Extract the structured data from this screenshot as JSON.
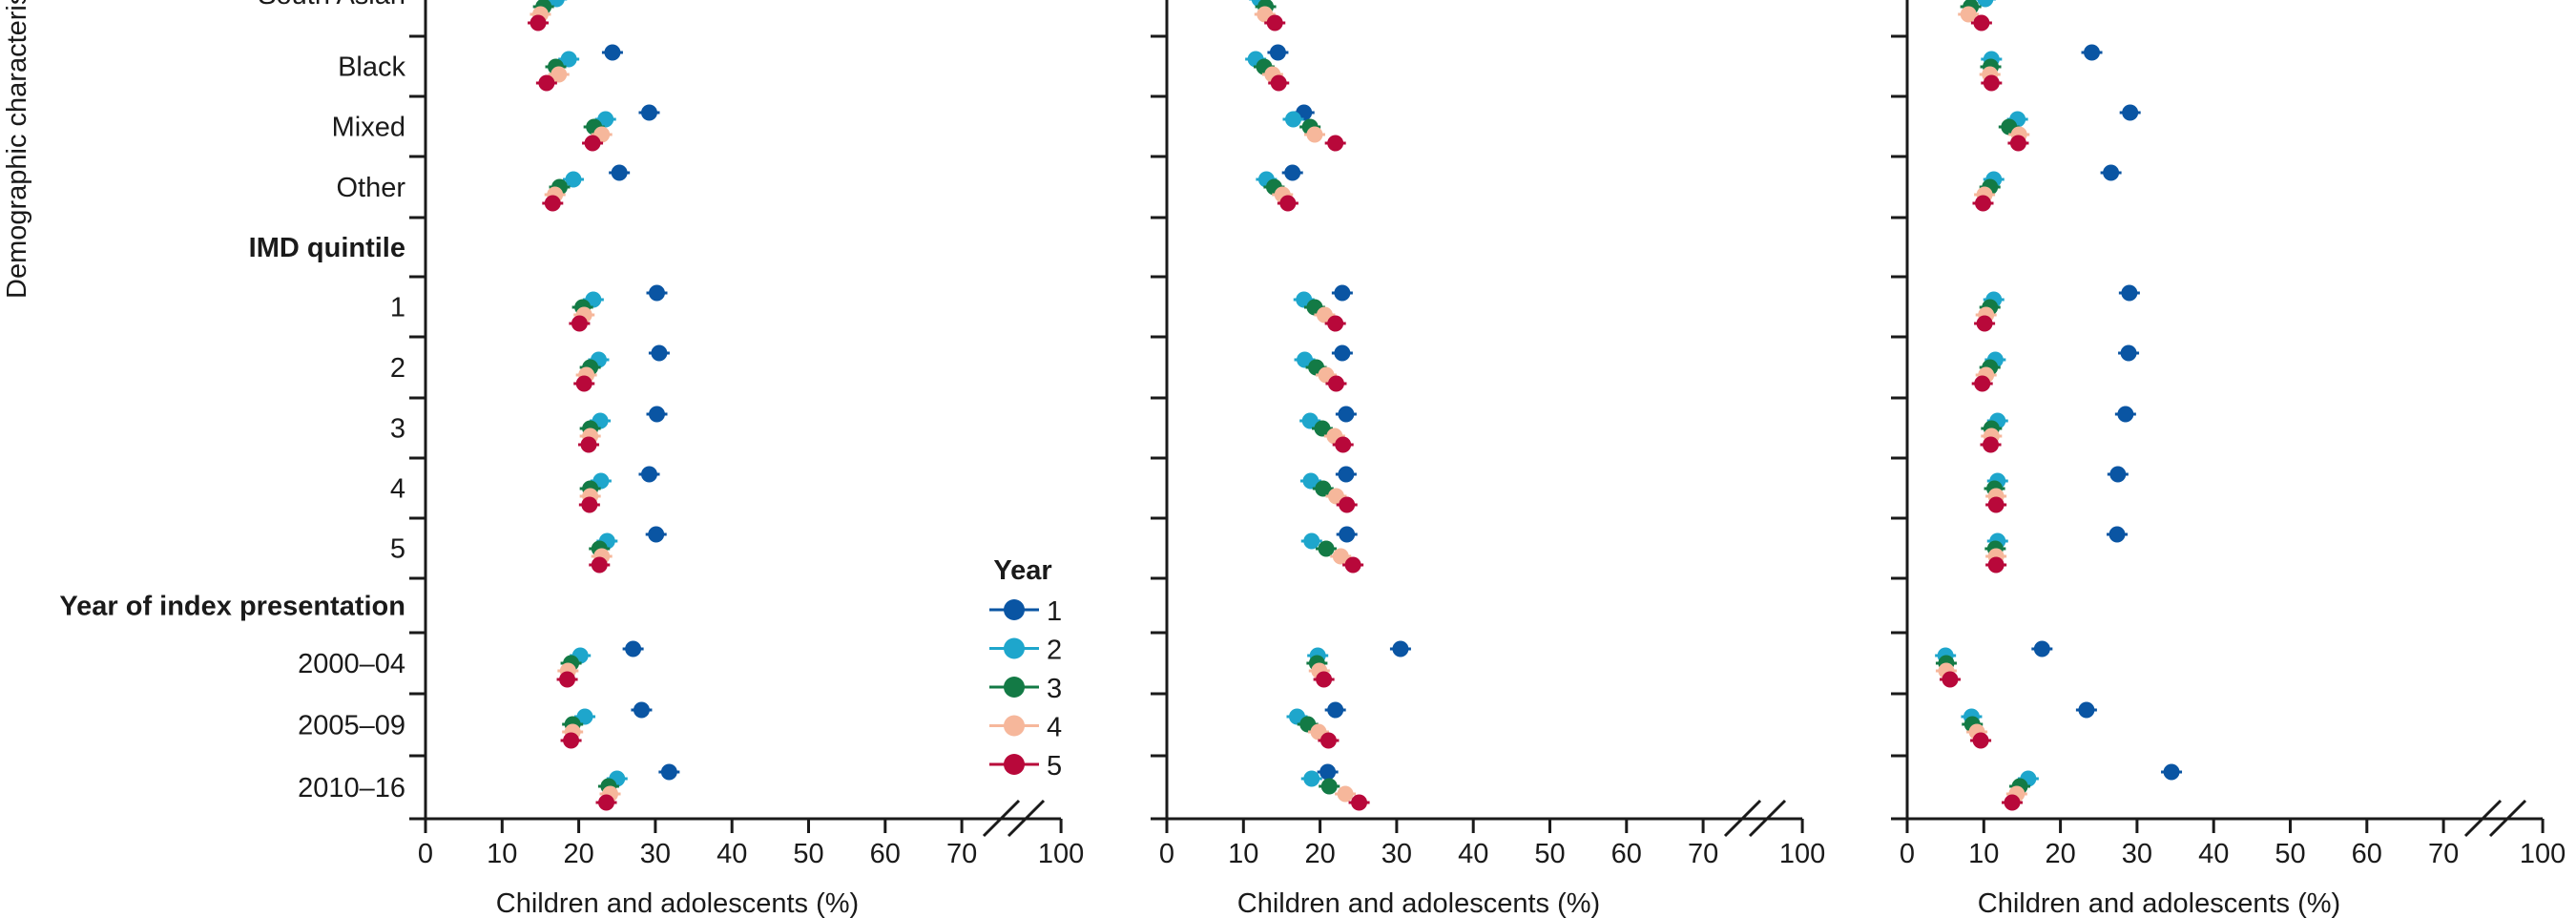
{
  "y_axis": {
    "title": "Demographic characteristics",
    "rows": [
      {
        "label": "South Asian",
        "kind": "category"
      },
      {
        "label": "Black",
        "kind": "category"
      },
      {
        "label": "Mixed",
        "kind": "category"
      },
      {
        "label": "Other",
        "kind": "category"
      },
      {
        "label": "IMD quintile",
        "kind": "header"
      },
      {
        "label": "1",
        "kind": "category"
      },
      {
        "label": "2",
        "kind": "category"
      },
      {
        "label": "3",
        "kind": "category"
      },
      {
        "label": "4",
        "kind": "category"
      },
      {
        "label": "5",
        "kind": "category"
      },
      {
        "label": "Year of index presentation",
        "kind": "header"
      },
      {
        "label": "2000–04",
        "kind": "category"
      },
      {
        "label": "2005–09",
        "kind": "category"
      },
      {
        "label": "2010–16",
        "kind": "category"
      }
    ]
  },
  "legend": {
    "title": "Year",
    "placement": "bottom-right of first panel",
    "items": [
      {
        "label": "1",
        "color": "#0a55a3"
      },
      {
        "label": "2",
        "color": "#1ea6cc"
      },
      {
        "label": "3",
        "color": "#137a45"
      },
      {
        "label": "4",
        "color": "#f6b79b"
      },
      {
        "label": "5",
        "color": "#b8083a"
      }
    ]
  },
  "chart_data": [
    {
      "type": "scatter",
      "xlabel": "Children and adolescents (%)",
      "xlim": [
        0,
        100
      ],
      "axis_break": [
        70,
        100
      ],
      "xticks": [
        "0",
        "10",
        "20",
        "30",
        "40",
        "50",
        "60",
        "70",
        "100"
      ],
      "grid": false,
      "series": [
        {
          "name": "1",
          "values": [
            null,
            24.4,
            29.2,
            25.3,
            null,
            30.2,
            30.5,
            30.2,
            29.2,
            30.1,
            null,
            27.1,
            28.2,
            31.8
          ]
        },
        {
          "name": "2",
          "values": [
            17.1,
            18.7,
            23.5,
            19.3,
            null,
            21.9,
            22.6,
            22.8,
            22.9,
            23.7,
            null,
            20.2,
            20.8,
            25.0
          ]
        },
        {
          "name": "3",
          "values": [
            15.4,
            17.0,
            22.0,
            17.5,
            null,
            20.5,
            21.5,
            21.5,
            21.5,
            22.7,
            null,
            19.0,
            19.2,
            23.9
          ]
        },
        {
          "name": "4",
          "values": [
            15.0,
            17.4,
            23.0,
            16.9,
            null,
            20.7,
            21.0,
            21.5,
            21.5,
            23.0,
            null,
            18.6,
            19.2,
            24.1
          ]
        },
        {
          "name": "5",
          "values": [
            14.7,
            15.8,
            21.8,
            16.6,
            null,
            20.1,
            20.7,
            21.3,
            21.4,
            22.7,
            null,
            18.5,
            19.0,
            23.6
          ]
        }
      ]
    },
    {
      "type": "scatter",
      "xlabel": "Children and adolescents (%)",
      "xlim": [
        0,
        100
      ],
      "axis_break": [
        70,
        100
      ],
      "xticks": [
        "0",
        "10",
        "20",
        "30",
        "40",
        "50",
        "60",
        "70",
        "100"
      ],
      "grid": false,
      "series": [
        {
          "name": "1",
          "values": [
            null,
            14.5,
            17.9,
            16.4,
            null,
            22.9,
            22.9,
            23.4,
            23.4,
            23.5,
            null,
            30.5,
            22.0,
            21.0
          ]
        },
        {
          "name": "2",
          "values": [
            12.1,
            11.6,
            16.5,
            13.0,
            null,
            17.9,
            18.0,
            18.7,
            18.8,
            18.9,
            null,
            19.7,
            17.0,
            18.9
          ]
        },
        {
          "name": "3",
          "values": [
            12.9,
            12.7,
            18.7,
            14.0,
            null,
            19.3,
            19.5,
            20.3,
            20.4,
            20.8,
            null,
            19.6,
            18.4,
            21.2
          ]
        },
        {
          "name": "4",
          "values": [
            12.8,
            13.8,
            19.3,
            15.1,
            null,
            20.6,
            20.8,
            21.9,
            22.1,
            22.7,
            null,
            19.9,
            19.8,
            23.3
          ]
        },
        {
          "name": "5",
          "values": [
            14.1,
            14.6,
            22.0,
            15.8,
            null,
            22.0,
            22.1,
            23.0,
            23.5,
            24.3,
            null,
            20.5,
            21.1,
            25.1
          ]
        }
      ]
    },
    {
      "type": "scatter",
      "xlabel": "Children and adolescents (%)",
      "xlim": [
        0,
        100
      ],
      "axis_break": [
        70,
        100
      ],
      "xticks": [
        "0",
        "10",
        "20",
        "30",
        "40",
        "50",
        "60",
        "70",
        "100"
      ],
      "grid": false,
      "series": [
        {
          "name": "1",
          "values": [
            null,
            24.1,
            29.1,
            26.6,
            null,
            29.0,
            28.9,
            28.5,
            27.5,
            27.4,
            null,
            17.6,
            23.4,
            34.5
          ]
        },
        {
          "name": "2",
          "values": [
            10.2,
            11.0,
            14.4,
            11.3,
            null,
            11.3,
            11.5,
            11.8,
            11.8,
            11.8,
            null,
            5.0,
            8.4,
            15.8
          ]
        },
        {
          "name": "3",
          "values": [
            8.3,
            10.9,
            13.3,
            10.8,
            null,
            10.8,
            10.8,
            11.0,
            11.4,
            11.5,
            null,
            5.1,
            8.5,
            14.7
          ]
        },
        {
          "name": "4",
          "values": [
            8.0,
            10.8,
            14.6,
            10.1,
            null,
            10.3,
            10.3,
            11.0,
            11.6,
            11.6,
            null,
            5.1,
            9.1,
            14.3
          ]
        },
        {
          "name": "5",
          "values": [
            9.7,
            11.0,
            14.5,
            9.9,
            null,
            10.1,
            9.8,
            10.9,
            11.6,
            11.6,
            null,
            5.6,
            9.6,
            13.7
          ]
        }
      ]
    }
  ]
}
